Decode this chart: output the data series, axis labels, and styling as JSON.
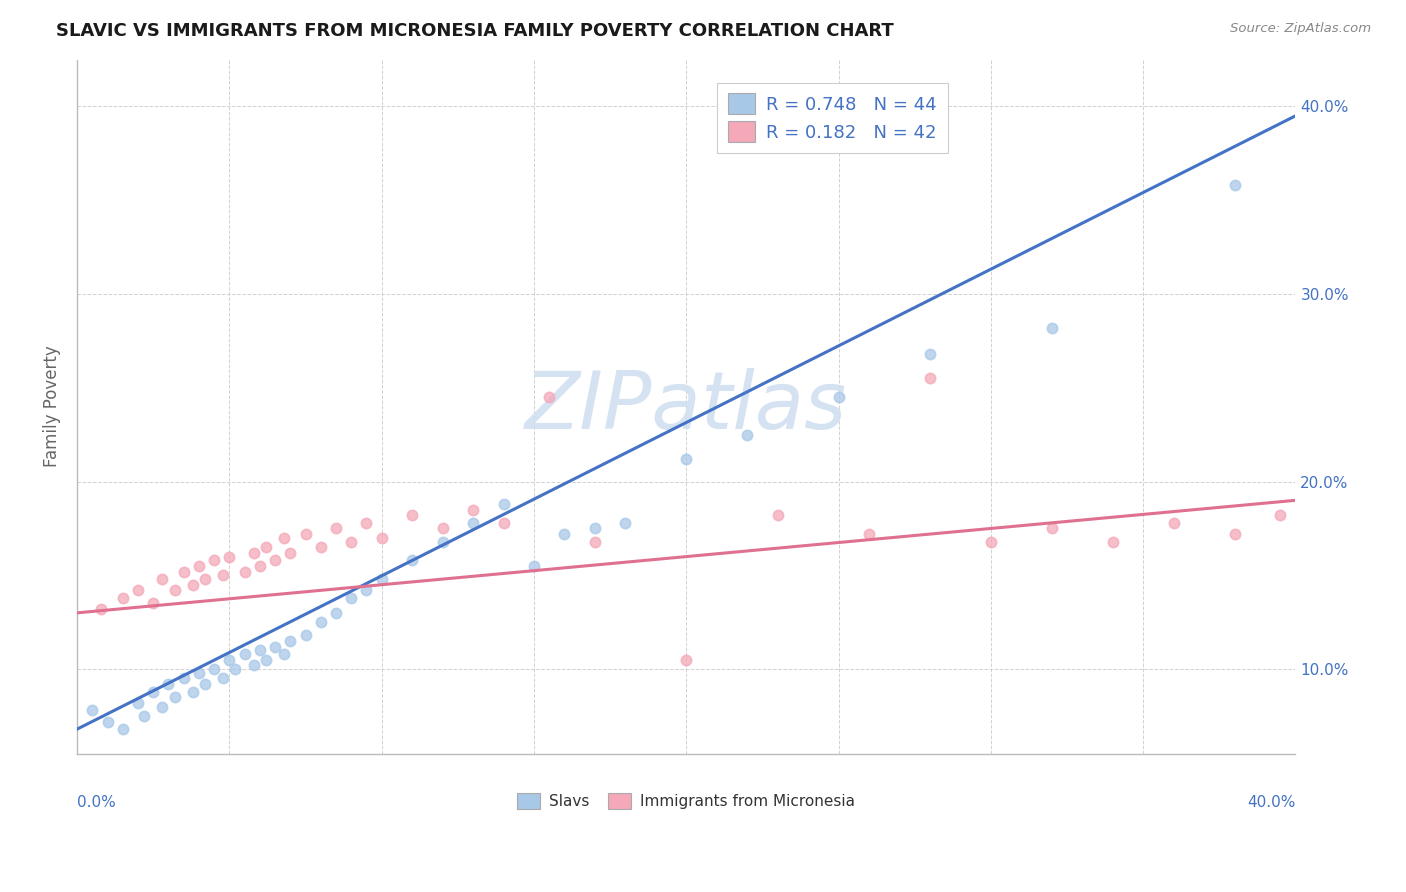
{
  "title": "SLAVIC VS IMMIGRANTS FROM MICRONESIA FAMILY POVERTY CORRELATION CHART",
  "source": "Source: ZipAtlas.com",
  "ylabel": "Family Poverty",
  "right_ytick_vals": [
    0.1,
    0.2,
    0.3,
    0.4
  ],
  "right_ytick_labels": [
    "10.0%",
    "20.0%",
    "30.0%",
    "40.0%"
  ],
  "xlim": [
    0.0,
    0.4
  ],
  "ylim": [
    0.055,
    0.425
  ],
  "legend_label1": "R = 0.748   N = 44",
  "legend_label2": "R = 0.182   N = 42",
  "legend_label1_bottom": "Slavs",
  "legend_label2_bottom": "Immigrants from Micronesia",
  "blue_dot_color": "#a8c8e8",
  "pink_dot_color": "#f4a8b8",
  "blue_line_color": "#4472C4",
  "pink_line_color": "#e07090",
  "blue_legend_color": "#a8c8e8",
  "pink_legend_color": "#f4a8b8",
  "text_color": "#4472C4",
  "watermark_color": "#d0dff0",
  "grid_color": "#cccccc",
  "background_color": "#ffffff",
  "slavs_x": [
    0.005,
    0.01,
    0.015,
    0.02,
    0.022,
    0.025,
    0.028,
    0.03,
    0.032,
    0.035,
    0.038,
    0.04,
    0.042,
    0.045,
    0.048,
    0.05,
    0.052,
    0.055,
    0.058,
    0.06,
    0.062,
    0.065,
    0.068,
    0.07,
    0.075,
    0.08,
    0.085,
    0.09,
    0.095,
    0.1,
    0.11,
    0.12,
    0.13,
    0.14,
    0.15,
    0.16,
    0.17,
    0.18,
    0.2,
    0.22,
    0.25,
    0.28,
    0.32,
    0.38
  ],
  "slavs_y": [
    0.078,
    0.072,
    0.068,
    0.082,
    0.075,
    0.088,
    0.08,
    0.092,
    0.085,
    0.095,
    0.088,
    0.098,
    0.092,
    0.1,
    0.095,
    0.105,
    0.1,
    0.108,
    0.102,
    0.11,
    0.105,
    0.112,
    0.108,
    0.115,
    0.118,
    0.125,
    0.13,
    0.138,
    0.142,
    0.148,
    0.158,
    0.168,
    0.178,
    0.188,
    0.155,
    0.172,
    0.175,
    0.178,
    0.212,
    0.225,
    0.245,
    0.268,
    0.282,
    0.358
  ],
  "micronesia_x": [
    0.008,
    0.015,
    0.02,
    0.025,
    0.028,
    0.032,
    0.035,
    0.038,
    0.04,
    0.042,
    0.045,
    0.048,
    0.05,
    0.055,
    0.058,
    0.06,
    0.062,
    0.065,
    0.068,
    0.07,
    0.075,
    0.08,
    0.085,
    0.09,
    0.095,
    0.1,
    0.11,
    0.12,
    0.13,
    0.14,
    0.155,
    0.17,
    0.2,
    0.23,
    0.26,
    0.28,
    0.3,
    0.32,
    0.34,
    0.36,
    0.38,
    0.395
  ],
  "micronesia_y": [
    0.132,
    0.138,
    0.142,
    0.135,
    0.148,
    0.142,
    0.152,
    0.145,
    0.155,
    0.148,
    0.158,
    0.15,
    0.16,
    0.152,
    0.162,
    0.155,
    0.165,
    0.158,
    0.17,
    0.162,
    0.172,
    0.165,
    0.175,
    0.168,
    0.178,
    0.17,
    0.182,
    0.175,
    0.185,
    0.178,
    0.245,
    0.168,
    0.105,
    0.182,
    0.172,
    0.255,
    0.168,
    0.175,
    0.168,
    0.178,
    0.172,
    0.182
  ],
  "slavs_trend_x": [
    0.0,
    0.4
  ],
  "slavs_trend_y": [
    0.068,
    0.395
  ],
  "micro_trend_x": [
    0.0,
    0.4
  ],
  "micro_trend_y": [
    0.13,
    0.19
  ]
}
